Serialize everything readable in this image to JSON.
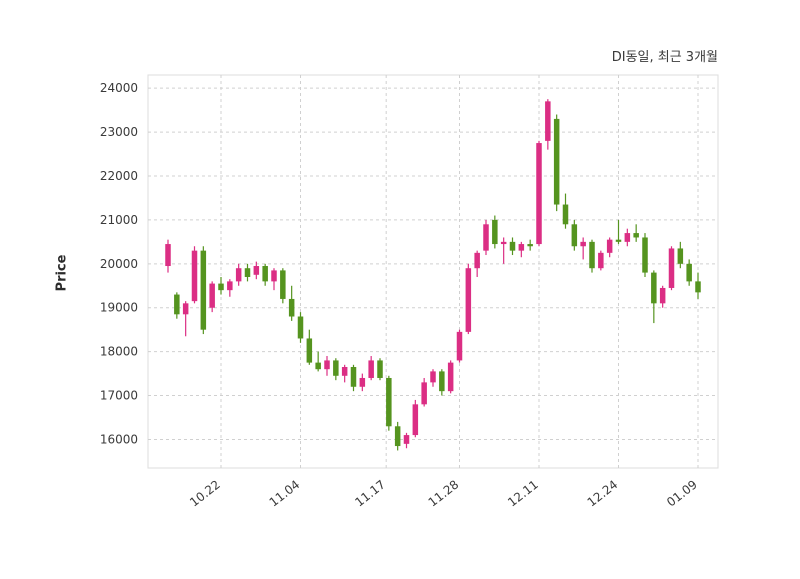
{
  "chart_data": {
    "type": "candlestick",
    "title": "DI동일, 최근 3개월",
    "ylabel": "Price",
    "xlabel": "",
    "grid": "dashed, both axes",
    "legend": "none",
    "ylim": [
      15350,
      24300
    ],
    "yticks": [
      16000,
      17000,
      18000,
      19000,
      20000,
      21000,
      22000,
      23000,
      24000
    ],
    "xticks": [
      {
        "label": "10.22",
        "index": 6
      },
      {
        "label": "11.04",
        "index": 15
      },
      {
        "label": "11.17",
        "index": 24.7
      },
      {
        "label": "11.28",
        "index": 33
      },
      {
        "label": "12.11",
        "index": 42
      },
      {
        "label": "12.24",
        "index": 51
      },
      {
        "label": "01.09",
        "index": 60
      }
    ],
    "up_color": "#db2e84",
    "down_color": "#55941f",
    "grid_color": "#d0d0d0",
    "frame_color": "#dddddd",
    "ohlc_columns": [
      "date",
      "open",
      "high",
      "low",
      "close"
    ],
    "ohlc": [
      [
        "10.14",
        19950,
        20550,
        19800,
        20450
      ],
      [
        "10.15",
        19300,
        19350,
        18750,
        18850
      ],
      [
        "10.16",
        18850,
        19150,
        18350,
        19100
      ],
      [
        "10.17",
        19150,
        20400,
        19100,
        20300
      ],
      [
        "10.18",
        20300,
        20400,
        18400,
        18500
      ],
      [
        "10.21",
        19000,
        19600,
        18900,
        19550
      ],
      [
        "10.22",
        19550,
        19700,
        19300,
        19400
      ],
      [
        "10.23",
        19400,
        19650,
        19250,
        19600
      ],
      [
        "10.24",
        19600,
        20000,
        19500,
        19900
      ],
      [
        "10.25",
        19900,
        20000,
        19600,
        19700
      ],
      [
        "10.28",
        19750,
        20050,
        19650,
        19950
      ],
      [
        "10.29",
        19950,
        20000,
        19500,
        19600
      ],
      [
        "10.30",
        19600,
        19900,
        19400,
        19850
      ],
      [
        "10.31",
        19850,
        19900,
        19100,
        19200
      ],
      [
        "11.01",
        19200,
        19500,
        18700,
        18800
      ],
      [
        "11.04",
        18800,
        18900,
        18200,
        18300
      ],
      [
        "11.05",
        18300,
        18500,
        17700,
        17750
      ],
      [
        "11.06",
        17750,
        18000,
        17550,
        17600
      ],
      [
        "11.07",
        17600,
        17900,
        17450,
        17800
      ],
      [
        "11.08",
        17800,
        17850,
        17350,
        17450
      ],
      [
        "11.11",
        17450,
        17700,
        17300,
        17650
      ],
      [
        "11.12",
        17650,
        17700,
        17100,
        17200
      ],
      [
        "11.13",
        17200,
        17500,
        17100,
        17400
      ],
      [
        "11.14",
        17400,
        17900,
        17350,
        17800
      ],
      [
        "11.15",
        17800,
        17850,
        17350,
        17400
      ],
      [
        "11.18",
        17400,
        17450,
        16200,
        16300
      ],
      [
        "11.19",
        16300,
        16400,
        15750,
        15850
      ],
      [
        "11.20",
        15900,
        16150,
        15800,
        16100
      ],
      [
        "11.21",
        16100,
        16900,
        16050,
        16800
      ],
      [
        "11.22",
        16800,
        17400,
        16750,
        17300
      ],
      [
        "11.25",
        17300,
        17600,
        17200,
        17550
      ],
      [
        "11.26",
        17550,
        17600,
        17000,
        17100
      ],
      [
        "11.27",
        17100,
        17800,
        17050,
        17750
      ],
      [
        "11.28",
        17800,
        18500,
        17750,
        18450
      ],
      [
        "11.29",
        18450,
        20000,
        18400,
        19900
      ],
      [
        "12.02",
        19900,
        20300,
        19700,
        20250
      ],
      [
        "12.03",
        20300,
        21000,
        20200,
        20900
      ],
      [
        "12.04",
        21000,
        21100,
        20350,
        20450
      ],
      [
        "12.05",
        20450,
        20600,
        20000,
        20500
      ],
      [
        "12.06",
        20500,
        20600,
        20200,
        20300
      ],
      [
        "12.09",
        20300,
        20500,
        20150,
        20450
      ],
      [
        "12.10",
        20450,
        20550,
        20300,
        20400
      ],
      [
        "12.11",
        20450,
        22800,
        20400,
        22750
      ],
      [
        "12.12",
        22800,
        23750,
        22600,
        23700
      ],
      [
        "12.13",
        23300,
        23400,
        21200,
        21350
      ],
      [
        "12.16",
        21350,
        21600,
        20800,
        20900
      ],
      [
        "12.17",
        20900,
        21000,
        20300,
        20400
      ],
      [
        "12.18",
        20400,
        20600,
        20100,
        20500
      ],
      [
        "12.19",
        20500,
        20550,
        19800,
        19900
      ],
      [
        "12.20",
        19900,
        20300,
        19850,
        20250
      ],
      [
        "12.23",
        20250,
        20600,
        20150,
        20550
      ],
      [
        "12.24",
        20550,
        21000,
        20450,
        20500
      ],
      [
        "12.26",
        20500,
        20800,
        20400,
        20700
      ],
      [
        "12.27",
        20700,
        20900,
        20500,
        20600
      ],
      [
        "12.30",
        20600,
        20700,
        19700,
        19800
      ],
      [
        "01.02",
        19800,
        19850,
        18650,
        19100
      ],
      [
        "01.03",
        19100,
        19500,
        19000,
        19450
      ],
      [
        "01.06",
        19450,
        20400,
        19400,
        20350
      ],
      [
        "01.07",
        20350,
        20500,
        19900,
        20000
      ],
      [
        "01.08",
        20000,
        20100,
        19500,
        19600
      ],
      [
        "01.09",
        19600,
        19800,
        19200,
        19350
      ]
    ]
  }
}
